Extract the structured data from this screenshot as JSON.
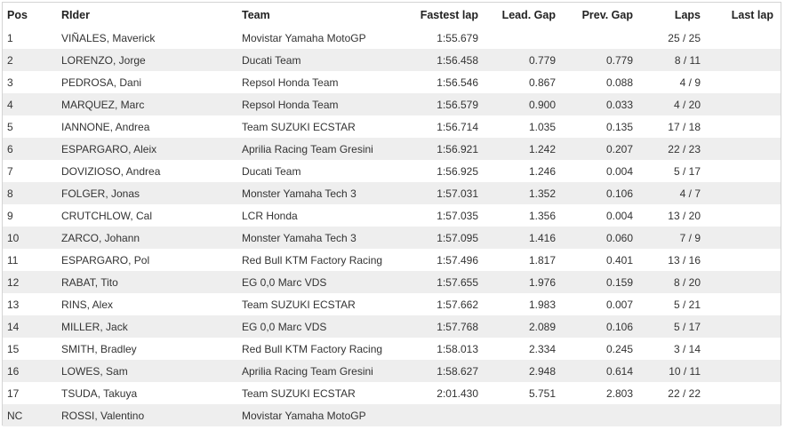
{
  "table": {
    "headers": {
      "pos": "Pos",
      "rider": "RIder",
      "team": "Team",
      "fastest_lap": "Fastest lap",
      "lead_gap": "Lead. Gap",
      "prev_gap": "Prev. Gap",
      "laps": "Laps",
      "last_lap": "Last lap"
    },
    "rows": [
      {
        "pos": "1",
        "rider": "VIÑALES, Maverick",
        "team": "Movistar Yamaha MotoGP",
        "fastest_lap": "1:55.679",
        "lead_gap": "",
        "prev_gap": "",
        "laps": "25 / 25",
        "last_lap": ""
      },
      {
        "pos": "2",
        "rider": "LORENZO, Jorge",
        "team": "Ducati Team",
        "fastest_lap": "1:56.458",
        "lead_gap": "0.779",
        "prev_gap": "0.779",
        "laps": "8 / 11",
        "last_lap": ""
      },
      {
        "pos": "3",
        "rider": "PEDROSA, Dani",
        "team": "Repsol Honda Team",
        "fastest_lap": "1:56.546",
        "lead_gap": "0.867",
        "prev_gap": "0.088",
        "laps": "4 / 9",
        "last_lap": ""
      },
      {
        "pos": "4",
        "rider": "MARQUEZ, Marc",
        "team": "Repsol Honda Team",
        "fastest_lap": "1:56.579",
        "lead_gap": "0.900",
        "prev_gap": "0.033",
        "laps": "4 / 20",
        "last_lap": ""
      },
      {
        "pos": "5",
        "rider": "IANNONE, Andrea",
        "team": "Team SUZUKI ECSTAR",
        "fastest_lap": "1:56.714",
        "lead_gap": "1.035",
        "prev_gap": "0.135",
        "laps": "17 / 18",
        "last_lap": ""
      },
      {
        "pos": "6",
        "rider": "ESPARGARO, Aleix",
        "team": "Aprilia Racing Team Gresini",
        "fastest_lap": "1:56.921",
        "lead_gap": "1.242",
        "prev_gap": "0.207",
        "laps": "22 / 23",
        "last_lap": ""
      },
      {
        "pos": "7",
        "rider": "DOVIZIOSO, Andrea",
        "team": "Ducati Team",
        "fastest_lap": "1:56.925",
        "lead_gap": "1.246",
        "prev_gap": "0.004",
        "laps": "5 / 17",
        "last_lap": ""
      },
      {
        "pos": "8",
        "rider": "FOLGER, Jonas",
        "team": "Monster Yamaha Tech 3",
        "fastest_lap": "1:57.031",
        "lead_gap": "1.352",
        "prev_gap": "0.106",
        "laps": "4 / 7",
        "last_lap": ""
      },
      {
        "pos": "9",
        "rider": "CRUTCHLOW, Cal",
        "team": "LCR Honda",
        "fastest_lap": "1:57.035",
        "lead_gap": "1.356",
        "prev_gap": "0.004",
        "laps": "13 / 20",
        "last_lap": ""
      },
      {
        "pos": "10",
        "rider": "ZARCO, Johann",
        "team": "Monster Yamaha Tech 3",
        "fastest_lap": "1:57.095",
        "lead_gap": "1.416",
        "prev_gap": "0.060",
        "laps": "7 / 9",
        "last_lap": ""
      },
      {
        "pos": "11",
        "rider": "ESPARGARO, Pol",
        "team": "Red Bull KTM Factory Racing",
        "fastest_lap": "1:57.496",
        "lead_gap": "1.817",
        "prev_gap": "0.401",
        "laps": "13 / 16",
        "last_lap": ""
      },
      {
        "pos": "12",
        "rider": "RABAT, Tito",
        "team": "EG 0,0 Marc VDS",
        "fastest_lap": "1:57.655",
        "lead_gap": "1.976",
        "prev_gap": "0.159",
        "laps": "8 / 20",
        "last_lap": ""
      },
      {
        "pos": "13",
        "rider": "RINS, Alex",
        "team": "Team SUZUKI ECSTAR",
        "fastest_lap": "1:57.662",
        "lead_gap": "1.983",
        "prev_gap": "0.007",
        "laps": "5 / 21",
        "last_lap": ""
      },
      {
        "pos": "14",
        "rider": "MILLER, Jack",
        "team": "EG 0,0 Marc VDS",
        "fastest_lap": "1:57.768",
        "lead_gap": "2.089",
        "prev_gap": "0.106",
        "laps": "5 / 17",
        "last_lap": ""
      },
      {
        "pos": "15",
        "rider": "SMITH, Bradley",
        "team": "Red Bull KTM Factory Racing",
        "fastest_lap": "1:58.013",
        "lead_gap": "2.334",
        "prev_gap": "0.245",
        "laps": "3 / 14",
        "last_lap": ""
      },
      {
        "pos": "16",
        "rider": "LOWES, Sam",
        "team": "Aprilia Racing Team Gresini",
        "fastest_lap": "1:58.627",
        "lead_gap": "2.948",
        "prev_gap": "0.614",
        "laps": "10 / 11",
        "last_lap": ""
      },
      {
        "pos": "17",
        "rider": "TSUDA, Takuya",
        "team": "Team SUZUKI ECSTAR",
        "fastest_lap": "2:01.430",
        "lead_gap": "5.751",
        "prev_gap": "2.803",
        "laps": "22 / 22",
        "last_lap": ""
      },
      {
        "pos": "NC",
        "rider": "ROSSI, Valentino",
        "team": "Movistar Yamaha MotoGP",
        "fastest_lap": "",
        "lead_gap": "",
        "prev_gap": "",
        "laps": "",
        "last_lap": ""
      }
    ]
  }
}
